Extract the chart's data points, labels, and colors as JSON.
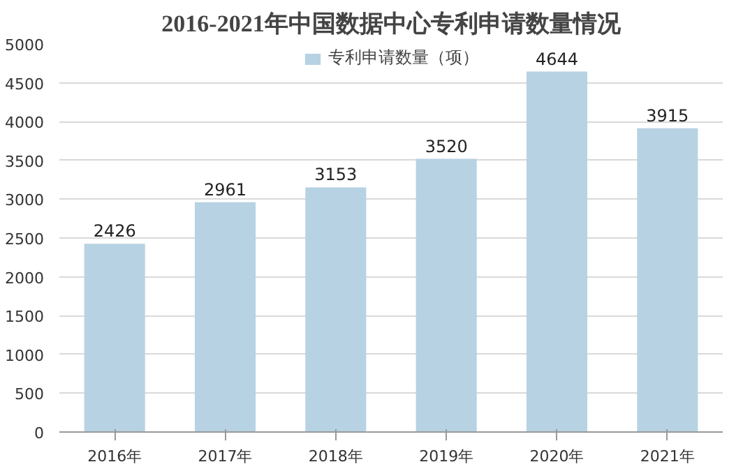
{
  "chart_data": {
    "type": "bar",
    "title": "2016-2021年中国数据中心专利申请数量情况",
    "categories": [
      "2016年",
      "2017年",
      "2018年",
      "2019年",
      "2020年",
      "2021年"
    ],
    "series": [
      {
        "name": "专利申请数量（项）",
        "color": "#b7d2e3",
        "values": [
          2426,
          2961,
          3153,
          3520,
          4644,
          3915
        ]
      }
    ],
    "ylim": [
      0,
      5000
    ],
    "yticks": [
      0,
      500,
      1000,
      1500,
      2000,
      2500,
      3000,
      3500,
      4000,
      4500,
      5000
    ],
    "grid": "y",
    "legend": "top",
    "data_labels": true
  }
}
